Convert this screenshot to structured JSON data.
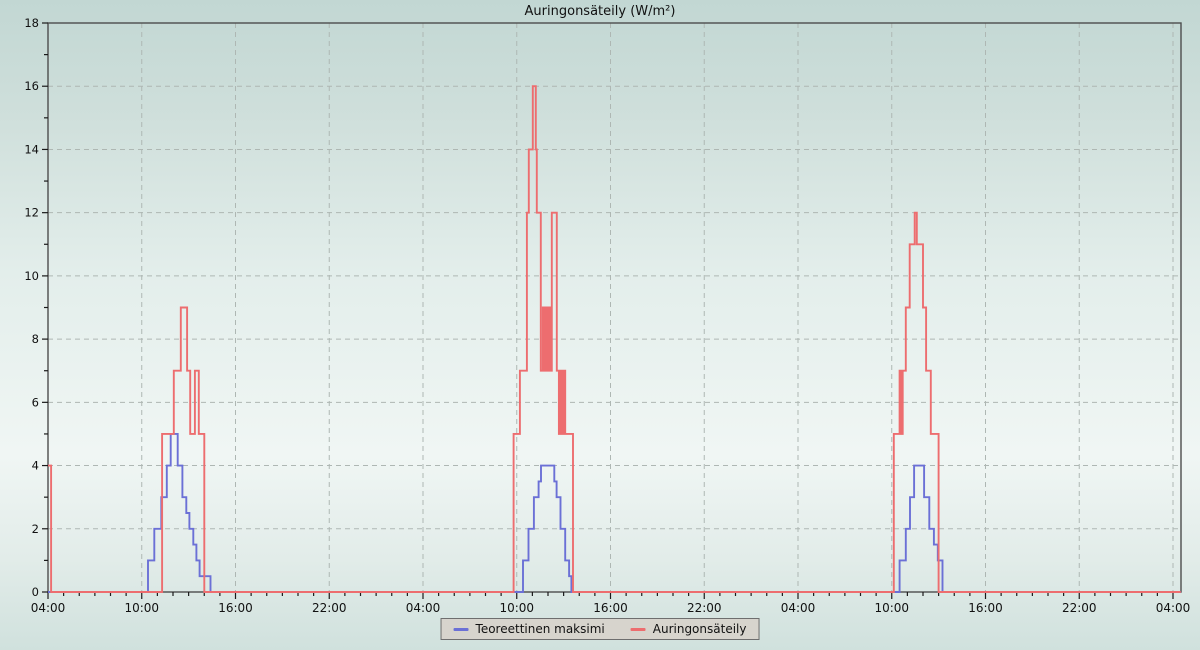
{
  "chart_data": {
    "type": "line",
    "interpolation": "step-after",
    "title": "Auringonsäteily (W/m²)",
    "x_axis": {
      "range_hours": [
        0,
        72.5
      ],
      "major_tick_every_hours": 6,
      "minor_tick_every_hours": 1,
      "tick_hours": [
        0,
        6,
        12,
        18,
        24,
        30,
        36,
        42,
        48,
        54,
        60,
        66,
        72
      ],
      "tick_labels": [
        "04:00",
        "10:00",
        "16:00",
        "22:00",
        "04:00",
        "10:00",
        "16:00",
        "22:00",
        "04:00",
        "10:00",
        "16:00",
        "22:00",
        "04:00"
      ]
    },
    "y_axis": {
      "range": [
        0,
        18
      ],
      "major_tick_every": 2,
      "minor_tick_every": 1,
      "tick_values": [
        0,
        2,
        4,
        6,
        8,
        10,
        12,
        14,
        16,
        18
      ],
      "tick_labels": [
        "0",
        "2",
        "4",
        "6",
        "8",
        "10",
        "12",
        "14",
        "16",
        "18"
      ]
    },
    "grid": {
      "style": "dashed",
      "horizontal": true,
      "vertical": true,
      "color": "#aeb7b3"
    },
    "legend": {
      "position": "bottom-center",
      "entries": [
        {
          "label": "Teoreettinen maksimi",
          "color": "#6b70d6"
        },
        {
          "label": "Auringonsäteily",
          "color": "#ed6d6f"
        }
      ]
    },
    "series": [
      {
        "name": "Teoreettinen maksimi",
        "color": "#6b70d6",
        "points": [
          [
            0,
            0
          ],
          [
            6.4,
            1
          ],
          [
            6.8,
            2
          ],
          [
            7.25,
            3
          ],
          [
            7.6,
            4
          ],
          [
            7.85,
            5
          ],
          [
            8.3,
            4
          ],
          [
            8.6,
            3
          ],
          [
            8.85,
            2.5
          ],
          [
            9.05,
            2
          ],
          [
            9.3,
            1.5
          ],
          [
            9.5,
            1
          ],
          [
            9.7,
            0.5
          ],
          [
            10.4,
            0
          ],
          [
            30.4,
            1
          ],
          [
            30.75,
            2
          ],
          [
            31.1,
            3
          ],
          [
            31.4,
            3.5
          ],
          [
            31.55,
            4
          ],
          [
            32.4,
            3.5
          ],
          [
            32.55,
            3
          ],
          [
            32.8,
            2
          ],
          [
            33.1,
            1
          ],
          [
            33.35,
            0.5
          ],
          [
            33.5,
            0
          ],
          [
            54.5,
            1
          ],
          [
            54.9,
            2
          ],
          [
            55.17,
            3
          ],
          [
            55.43,
            4
          ],
          [
            56.07,
            3
          ],
          [
            56.4,
            2
          ],
          [
            56.7,
            1.5
          ],
          [
            56.95,
            1
          ],
          [
            57.25,
            0
          ],
          [
            72.5,
            0
          ]
        ]
      },
      {
        "name": "Auringonsäteily",
        "color": "#ed6d6f",
        "points": [
          [
            0,
            4
          ],
          [
            0.2,
            0
          ],
          [
            7.3,
            5
          ],
          [
            8.05,
            7
          ],
          [
            8.5,
            9
          ],
          [
            8.9,
            7
          ],
          [
            9.1,
            5
          ],
          [
            9.4,
            7
          ],
          [
            9.65,
            5
          ],
          [
            10.0,
            0
          ],
          [
            29.8,
            5
          ],
          [
            30.2,
            7
          ],
          [
            30.65,
            12
          ],
          [
            30.77,
            14
          ],
          [
            31.03,
            16
          ],
          [
            31.22,
            14
          ],
          [
            31.28,
            12
          ],
          [
            31.54,
            7
          ],
          [
            31.67,
            9
          ],
          [
            31.77,
            7
          ],
          [
            31.87,
            9
          ],
          [
            31.97,
            7
          ],
          [
            32.07,
            9
          ],
          [
            32.12,
            7
          ],
          [
            32.24,
            12
          ],
          [
            32.56,
            7
          ],
          [
            32.7,
            5
          ],
          [
            32.8,
            7
          ],
          [
            32.9,
            5
          ],
          [
            33.0,
            7
          ],
          [
            33.1,
            5
          ],
          [
            33.6,
            0
          ],
          [
            54.13,
            5
          ],
          [
            54.5,
            7
          ],
          [
            54.6,
            5
          ],
          [
            54.7,
            7
          ],
          [
            54.9,
            9
          ],
          [
            55.15,
            11
          ],
          [
            55.47,
            12
          ],
          [
            55.6,
            11
          ],
          [
            56.0,
            9
          ],
          [
            56.2,
            7
          ],
          [
            56.5,
            5
          ],
          [
            57.0,
            0
          ],
          [
            72.5,
            0
          ]
        ]
      }
    ]
  },
  "colors": {
    "background_top": "#c2d7d3",
    "background_mid": "#f0f6f4",
    "background_bottom": "#d0e1dd",
    "plot_border": "#4d4d4d",
    "tick_color": "#1a1a1a",
    "tick_text": "#111111",
    "grid_color": "#aeb7b3",
    "legend_bg": "#d7d4cd",
    "legend_border": "#6e6e6e"
  }
}
